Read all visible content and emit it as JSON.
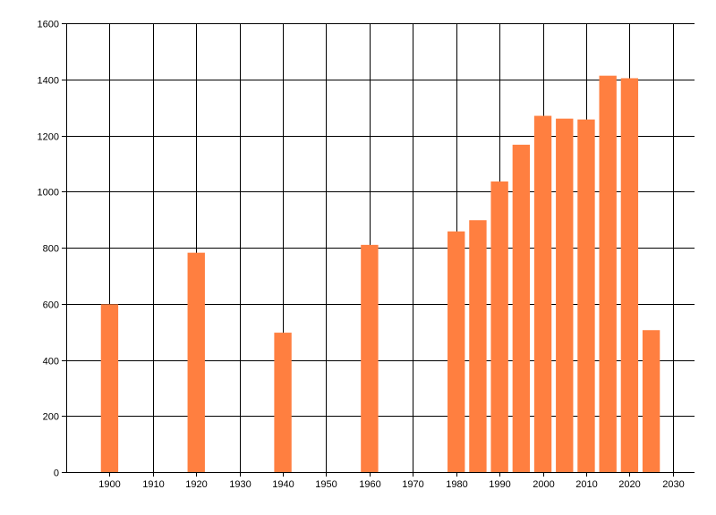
{
  "chart_data": {
    "type": "bar",
    "title": "",
    "xlabel": "",
    "ylabel": "",
    "x": [
      1900,
      1920,
      1940,
      1960,
      1980,
      1985,
      1990,
      1995,
      2000,
      2005,
      2010,
      2015,
      2020,
      2025
    ],
    "values": [
      598,
      782,
      497,
      810,
      858,
      898,
      1036,
      1167,
      1270,
      1260,
      1257,
      1413,
      1404,
      506
    ],
    "xlim": [
      1890,
      2035
    ],
    "ylim": [
      0,
      1600
    ],
    "xticks": [
      1900,
      1910,
      1920,
      1930,
      1940,
      1950,
      1960,
      1970,
      1980,
      1990,
      2000,
      2010,
      2020,
      2030
    ],
    "yticks": [
      0,
      200,
      400,
      600,
      800,
      1000,
      1200,
      1400,
      1600
    ],
    "xtick_labels": [
      "1900",
      "1910",
      "1920",
      "1930",
      "1940",
      "1950",
      "1960",
      "1970",
      "1980",
      "1990",
      "2000",
      "2010",
      "2020",
      "2030"
    ],
    "ytick_labels": [
      "0",
      "200",
      "400",
      "600",
      "800",
      "1000",
      "1200",
      "1400",
      "1600"
    ],
    "grid": true,
    "legend": "none",
    "bar_color": "#ff7f40",
    "grid_color": "#000000"
  }
}
